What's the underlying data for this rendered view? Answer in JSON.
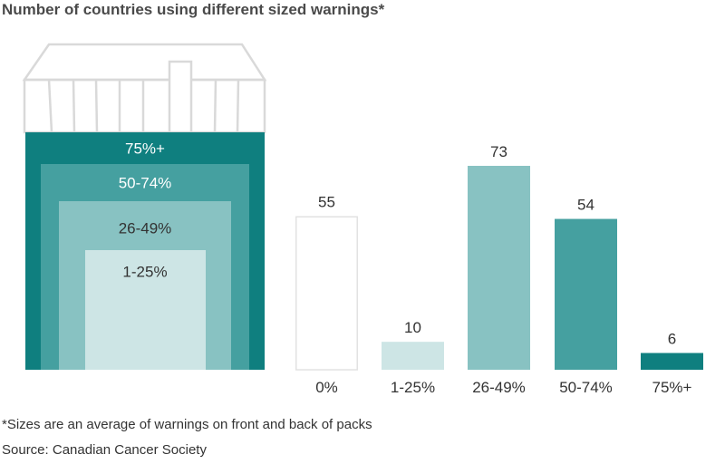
{
  "chart_data": {
    "type": "bar",
    "title": "Number of countries using different sized warnings*",
    "categories": [
      "0%",
      "1-25%",
      "26-49%",
      "50-74%",
      "75%+"
    ],
    "values": [
      55,
      10,
      73,
      54,
      6
    ],
    "value_labels": [
      "55",
      "10",
      "73",
      "54",
      "6"
    ],
    "xlabel": "",
    "ylabel": "",
    "ylim": [
      0,
      80
    ],
    "grid": false,
    "legend": "none",
    "colors": [
      "#ffffff",
      "#cde5e5",
      "#88c2c2",
      "#45a0a0",
      "#0f7f7f"
    ],
    "pack_illustration": {
      "layers": [
        "75%+",
        "50-74%",
        "26-49%",
        "1-25%"
      ],
      "colors": [
        "#0f7f7f",
        "#45a0a0",
        "#88c2c2",
        "#cde5e5"
      ]
    }
  },
  "footnote": "*Sizes are an average of warnings on front and back of packs",
  "source": "Source: Canadian Cancer Society"
}
